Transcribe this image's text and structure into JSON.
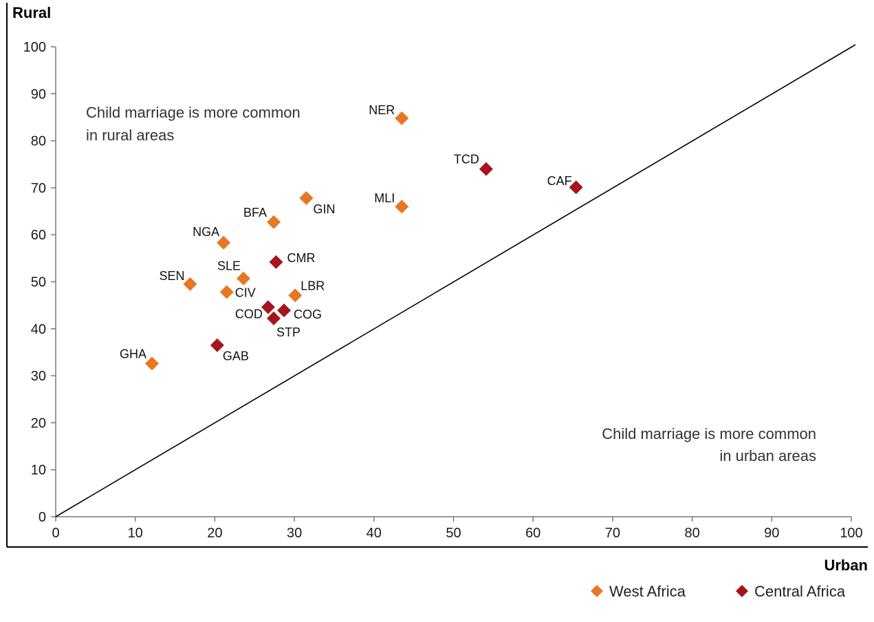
{
  "chart_data": {
    "type": "scatter",
    "title": "",
    "xlabel": "Urban",
    "ylabel": "Rural",
    "xlim": [
      0,
      100
    ],
    "ylim": [
      0,
      100
    ],
    "x_ticks": [
      "0",
      "10",
      "20",
      "30",
      "40",
      "50",
      "60",
      "70",
      "80",
      "90",
      "100"
    ],
    "y_ticks": [
      "0",
      "10",
      "20",
      "30",
      "40",
      "50",
      "60",
      "70",
      "80",
      "90",
      "100"
    ],
    "grid": false,
    "reference_line": {
      "type": "diagonal",
      "from": [
        0,
        0
      ],
      "to": [
        100,
        100
      ]
    },
    "annotations": {
      "rural": [
        "Child marriage is more common",
        "in rural areas"
      ],
      "urban": [
        "Child marriage is more common",
        "in urban areas"
      ]
    },
    "legend_position": "bottom-right",
    "series": [
      {
        "name": "West Africa",
        "color": "#E87722",
        "marker": "diamond",
        "points": [
          {
            "label": "NER",
            "x": 43.5,
            "y": 84.8
          },
          {
            "label": "GIN",
            "x": 31.5,
            "y": 67.8
          },
          {
            "label": "MLI",
            "x": 43.5,
            "y": 66.0
          },
          {
            "label": "BFA",
            "x": 27.4,
            "y": 62.7
          },
          {
            "label": "NGA",
            "x": 21.1,
            "y": 58.3
          },
          {
            "label": "SLE",
            "x": 23.6,
            "y": 50.7
          },
          {
            "label": "SEN",
            "x": 16.9,
            "y": 49.5
          },
          {
            "label": "CIV",
            "x": 21.5,
            "y": 47.8
          },
          {
            "label": "LBR",
            "x": 30.1,
            "y": 47.1
          },
          {
            "label": "GHA",
            "x": 12.1,
            "y": 32.6
          }
        ]
      },
      {
        "name": "Central Africa",
        "color": "#A6141C",
        "marker": "diamond",
        "points": [
          {
            "label": "TCD",
            "x": 54.1,
            "y": 74.0
          },
          {
            "label": "CAF",
            "x": 65.4,
            "y": 70.1
          },
          {
            "label": "CMR",
            "x": 27.7,
            "y": 54.2
          },
          {
            "label": "COD",
            "x": 26.7,
            "y": 44.6
          },
          {
            "label": "COG",
            "x": 28.7,
            "y": 43.9
          },
          {
            "label": "STP",
            "x": 27.4,
            "y": 42.2
          },
          {
            "label": "GAB",
            "x": 20.3,
            "y": 36.5
          }
        ]
      }
    ]
  }
}
